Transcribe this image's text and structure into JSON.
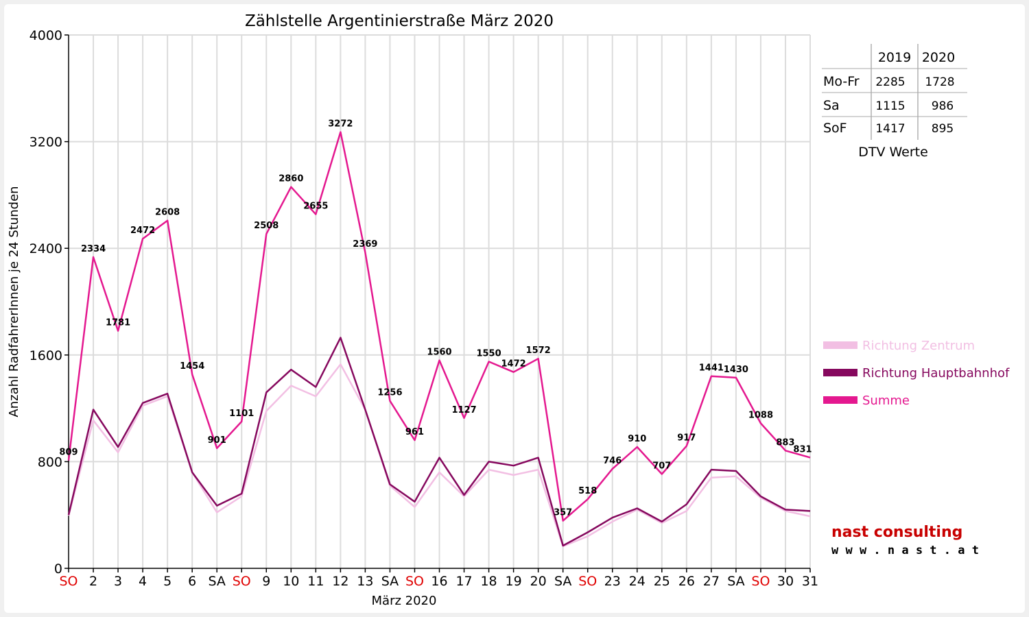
{
  "chart_data": {
    "type": "line",
    "title": "Zählstelle Argentinierstraße März 2020",
    "xlabel": "März 2020",
    "ylabel": "Anzahl RadfahrerInnen je 24 Stunden",
    "ylim": [
      0,
      4000
    ],
    "yticks": [
      "0",
      "800",
      "1600",
      "2400",
      "3200",
      "4000"
    ],
    "grid": true,
    "legend_position": "right",
    "categories": [
      "SO",
      "2",
      "3",
      "4",
      "5",
      "6",
      "SA",
      "SO",
      "9",
      "10",
      "11",
      "12",
      "13",
      "SA",
      "SO",
      "16",
      "17",
      "18",
      "19",
      "20",
      "SA",
      "SO",
      "23",
      "24",
      "25",
      "26",
      "27",
      "SA",
      "SO",
      "30",
      "31"
    ],
    "weekend_categories": [
      0,
      7,
      14,
      21,
      28
    ],
    "weekend_color": "#e00000",
    "series": [
      {
        "name": "Richtung Zentrum",
        "color": "#f2bfe3",
        "values": [
          395,
          1110,
          870,
          1220,
          1290,
          720,
          420,
          540,
          1180,
          1370,
          1290,
          1530,
          1190,
          620,
          460,
          720,
          540,
          740,
          700,
          740,
          165,
          240,
          350,
          440,
          340,
          430,
          680,
          690,
          530,
          430,
          390
        ]
      },
      {
        "name": "Richtung Hauptbahnhof",
        "color": "#86085e",
        "values": [
          400,
          1190,
          910,
          1240,
          1310,
          720,
          470,
          560,
          1320,
          1490,
          1360,
          1730,
          1190,
          630,
          500,
          830,
          550,
          800,
          770,
          830,
          170,
          270,
          380,
          450,
          350,
          480,
          740,
          730,
          540,
          440,
          430
        ]
      },
      {
        "name": "Summe",
        "color": "#e4188f",
        "values": [
          809,
          2334,
          1781,
          2472,
          2608,
          1454,
          901,
          1101,
          2508,
          2860,
          2655,
          3272,
          2369,
          1256,
          961,
          1560,
          1127,
          1550,
          1472,
          1572,
          357,
          518,
          746,
          910,
          707,
          917,
          1441,
          1430,
          1088,
          883,
          831
        ]
      }
    ],
    "summe_labels": [
      "809",
      "2334",
      "1781",
      "2472",
      "2608",
      "1454",
      "901",
      "1101",
      "2508",
      "2860",
      "2655",
      "3272",
      "2369",
      "1256",
      "961",
      "1560",
      "1127",
      "1550",
      "1472",
      "1572",
      "357",
      "518",
      "746",
      "910",
      "707",
      "917",
      "1441",
      "1430",
      "1088",
      "883",
      "831"
    ]
  },
  "dtv_table": {
    "headers": [
      "",
      "2019",
      "2020"
    ],
    "rows": [
      {
        "label": "Mo-Fr",
        "y2019": "2285",
        "y2020": "1728"
      },
      {
        "label": "Sa",
        "y2019": "1115",
        "y2020": "986"
      },
      {
        "label": "SoF",
        "y2019": "1417",
        "y2020": "895"
      }
    ],
    "caption": "DTV Werte"
  },
  "logo": {
    "name": "nast consulting",
    "url": "w w w . n a s t . a t"
  }
}
